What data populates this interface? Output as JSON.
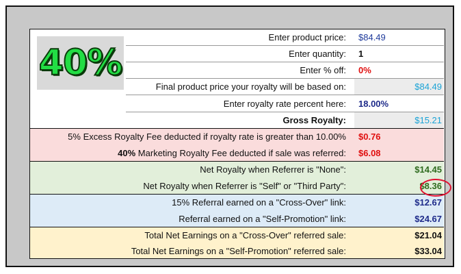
{
  "badge": {
    "text": "40%"
  },
  "inputs": {
    "price_label": "Enter product price:",
    "price_value": "$84.49",
    "qty_label": "Enter quantity:",
    "qty_value": "1",
    "off_label": "Enter % off:",
    "off_value": "0%",
    "final_label": "Final product price your royalty will be based on:",
    "final_value": "$84.49",
    "rate_label": "Enter royalty rate percent here:",
    "rate_value": "18.00%",
    "gross_label": "Gross Royalty:",
    "gross_value": "$15.21"
  },
  "fees": {
    "excess_label": "5% Excess Royalty Fee deducted if royalty rate is greater than 10.00%",
    "excess_value": "$0.76",
    "marketing_bold": "40%",
    "marketing_label": " Marketing Royalty Fee deducted if sale was referred:",
    "marketing_value": "$6.08"
  },
  "net": {
    "none_label": "Net Royalty when Referrer is \"None\":",
    "none_value": "$14.45",
    "self_label": "Net Royalty when Referrer is \"Self\" or \"Third Party\":",
    "self_value": "$8.36"
  },
  "referral": {
    "cross_label": "15% Referral earned on a \"Cross-Over\" link:",
    "cross_value": "$12.67",
    "promo_label": "Referral earned on a \"Self-Promotion\" link:",
    "promo_value": "$24.67"
  },
  "totals": {
    "cross_label": "Total Net Earnings on a \"Cross-Over\" referred sale:",
    "cross_value": "$21.04",
    "promo_label": "Total Net Earnings on a \"Self-Promotion\" referred sale:",
    "promo_value": "$33.04"
  },
  "colors": {
    "fees_bg": "#fadcdc",
    "net_bg": "#e2efda",
    "referral_bg": "#ddebf7",
    "totals_bg": "#fff2cc",
    "circle": "#e01030"
  }
}
